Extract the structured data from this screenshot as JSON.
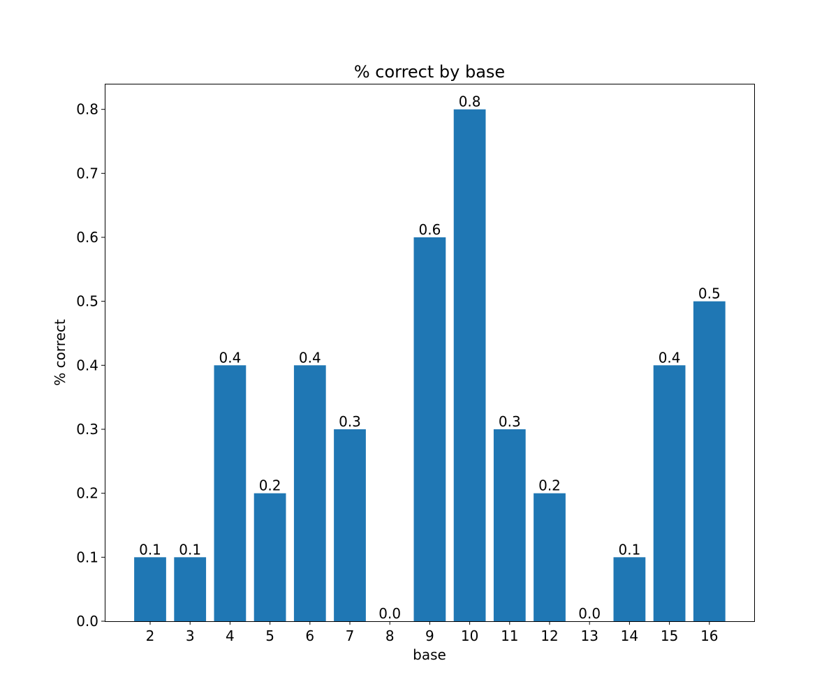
{
  "chart_data": {
    "type": "bar",
    "title": "% correct by base",
    "xlabel": "base",
    "ylabel": "% correct",
    "categories": [
      "2",
      "3",
      "4",
      "5",
      "6",
      "7",
      "8",
      "9",
      "10",
      "11",
      "12",
      "13",
      "14",
      "15",
      "16"
    ],
    "values": [
      0.1,
      0.1,
      0.4,
      0.2,
      0.4,
      0.3,
      0.0,
      0.6,
      0.8,
      0.3,
      0.2,
      0.0,
      0.1,
      0.4,
      0.5
    ],
    "data_labels": [
      "0.1",
      "0.1",
      "0.4",
      "0.2",
      "0.4",
      "0.3",
      "0.0",
      "0.6",
      "0.8",
      "0.3",
      "0.2",
      "0.0",
      "0.1",
      "0.4",
      "0.5"
    ],
    "yticks": [
      "0.0",
      "0.1",
      "0.2",
      "0.3",
      "0.4",
      "0.5",
      "0.6",
      "0.7",
      "0.8"
    ],
    "ylim": [
      0,
      0.84
    ],
    "grid": false,
    "bar_color": "#1f77b4"
  }
}
